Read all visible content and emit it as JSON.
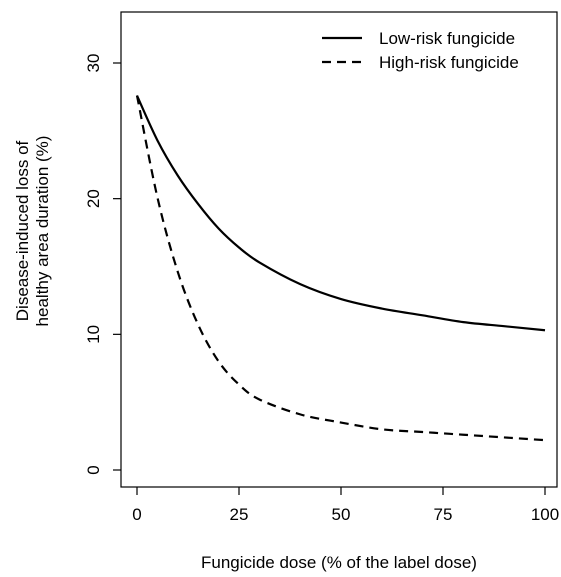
{
  "chart_data": {
    "type": "line",
    "title": "",
    "xlabel": "Fungicide dose (% of the label dose)",
    "ylabel_lines": [
      "Disease-induced loss of",
      "healthy area duration (%)"
    ],
    "xlim": [
      0,
      100
    ],
    "ylim": [
      0,
      30
    ],
    "xticks": [
      "0",
      "25",
      "50",
      "75",
      "100"
    ],
    "yticks": [
      "0",
      "10",
      "20",
      "30"
    ],
    "grid": false,
    "legend_position": "top-right",
    "series": [
      {
        "name": "Low-risk fungicide",
        "line_style": "solid",
        "color": "#000000",
        "x": [
          0,
          5,
          10,
          15,
          20,
          25,
          30,
          40,
          50,
          60,
          70,
          80,
          90,
          100
        ],
        "y": [
          27.6,
          24.3,
          21.7,
          19.6,
          17.8,
          16.4,
          15.3,
          13.7,
          12.6,
          11.9,
          11.4,
          10.9,
          10.6,
          10.3
        ]
      },
      {
        "name": "High-risk fungicide",
        "line_style": "dashed",
        "color": "#000000",
        "x": [
          0,
          5,
          10,
          15,
          20,
          25,
          30,
          40,
          50,
          60,
          70,
          80,
          90,
          100
        ],
        "y": [
          27.6,
          20.1,
          14.6,
          10.7,
          8.0,
          6.3,
          5.2,
          4.1,
          3.5,
          3.0,
          2.8,
          2.6,
          2.4,
          2.2
        ]
      }
    ]
  }
}
